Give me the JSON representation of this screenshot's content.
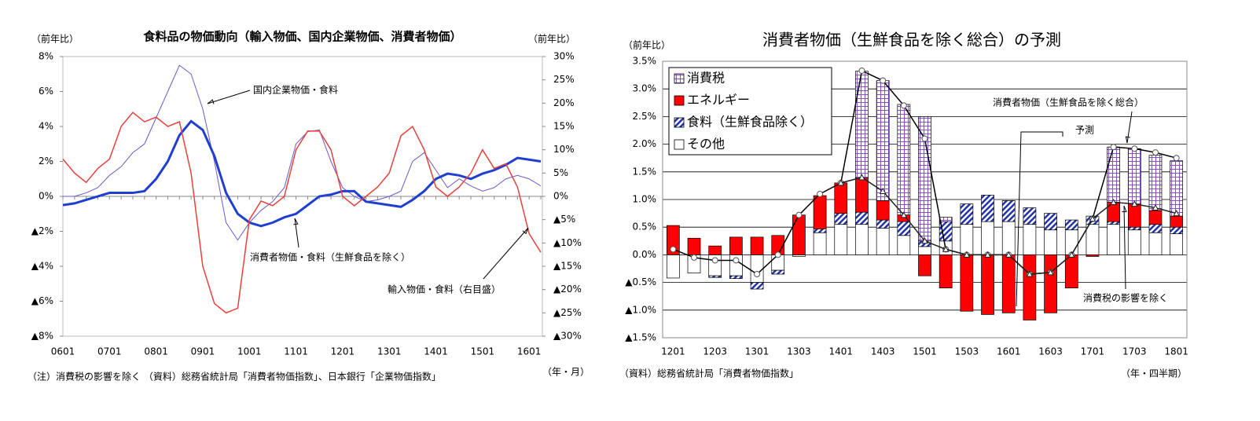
{
  "chart_data": [
    {
      "type": "line",
      "title": "食料品の物価動向（輸入物価、国内企業物価、消費者物価）",
      "y_label": "（前年比）",
      "y2_label": "（前年比）",
      "x_label": "（年・月）",
      "note": "（注）消費税の影響を除く （資料）総務省統計局「消費者物価指数」、日本銀行「企業物価指数」",
      "categories": [
        "0601",
        null,
        null,
        null,
        "0701",
        null,
        null,
        null,
        "0801",
        null,
        null,
        null,
        "0901",
        null,
        null,
        null,
        "1001",
        null,
        null,
        null,
        "1101",
        null,
        null,
        null,
        "1201",
        null,
        null,
        null,
        "1301",
        null,
        null,
        null,
        "1401",
        null,
        null,
        null,
        "1501",
        null,
        null,
        null,
        "1601",
        null
      ],
      "ylim": [
        -8,
        8
      ],
      "yticks": [
        {
          "value": 8,
          "label": "8%"
        },
        {
          "value": 6,
          "label": "6%"
        },
        {
          "value": 4,
          "label": "4%"
        },
        {
          "value": 2,
          "label": "2%"
        },
        {
          "value": 0,
          "label": "0%"
        },
        {
          "value": -2,
          "label": "▲2%"
        },
        {
          "value": -4,
          "label": "▲4%"
        },
        {
          "value": -6,
          "label": "▲6%"
        },
        {
          "value": -8,
          "label": "▲8%"
        }
      ],
      "y2lim": [
        -30,
        30
      ],
      "y2ticks": [
        {
          "value": 30,
          "label": "30%"
        },
        {
          "value": 25,
          "label": "25%"
        },
        {
          "value": 20,
          "label": "20%"
        },
        {
          "value": 15,
          "label": "15%"
        },
        {
          "value": 10,
          "label": "10%"
        },
        {
          "value": 5,
          "label": "5%"
        },
        {
          "value": 0,
          "label": "0%"
        },
        {
          "value": -5,
          "label": "▲5%"
        },
        {
          "value": -10,
          "label": "▲10%"
        },
        {
          "value": -15,
          "label": "▲15%"
        },
        {
          "value": -20,
          "label": "▲20%"
        },
        {
          "value": -25,
          "label": "▲25%"
        },
        {
          "value": -30,
          "label": "▲30%"
        }
      ],
      "grid": false,
      "series": [
        {
          "name": "国内企業物価・食料",
          "color": "#6a5acd",
          "width": 1,
          "values": [
            0,
            0,
            0.2,
            0.5,
            1.2,
            1.7,
            2.5,
            3.0,
            4.5,
            6.0,
            7.5,
            7.0,
            5.0,
            2.0,
            -1.5,
            -2.5,
            -1.5,
            -0.8,
            -0.3,
            0.5,
            3.0,
            3.7,
            3.8,
            2.0,
            0.5,
            0,
            -0.3,
            -0.2,
            0,
            0.3,
            2.0,
            2.5,
            1.5,
            0.5,
            1.0,
            0.6,
            0.3,
            0.5,
            1.0,
            1.2,
            1.0,
            0.6
          ]
        },
        {
          "name": "消費者物価・食料（生鮮食品を除く）",
          "color": "#1f3fd0",
          "width": 3,
          "values": [
            -0.5,
            -0.4,
            -0.2,
            0,
            0.2,
            0.2,
            0.2,
            0.3,
            1.0,
            2.0,
            3.5,
            4.3,
            3.8,
            2.3,
            0.2,
            -1.0,
            -1.5,
            -1.7,
            -1.5,
            -1.2,
            -1.0,
            -0.5,
            0,
            0.1,
            0.3,
            0.3,
            -0.3,
            -0.4,
            -0.5,
            -0.6,
            -0.2,
            0.3,
            1.0,
            1.3,
            1.2,
            1.0,
            1.3,
            1.5,
            1.8,
            2.2,
            2.1,
            2.0
          ]
        },
        {
          "name": "輸入物価・食料（右目盛）",
          "color": "#e8413c",
          "width": 1.5,
          "axis": "y2",
          "values": [
            8,
            5,
            3,
            6,
            8,
            15,
            18,
            16,
            17,
            15,
            16,
            5,
            -15,
            -23,
            -25,
            -24,
            -5,
            -1,
            -2,
            0,
            10,
            14,
            14,
            10,
            0,
            -2,
            0,
            2,
            5,
            13,
            15,
            10,
            2,
            0,
            2,
            5,
            10,
            6,
            7,
            2,
            -8,
            -12
          ]
        }
      ]
    },
    {
      "type": "bar",
      "stacked": true,
      "title": "消費者物価（生鮮食品を除く総合）の予測",
      "y_label": "（前年比）",
      "x_label": "（年・四半期）",
      "note": "（資料）総務省統計局「消費者物価指数」",
      "annotations": [
        "予測"
      ],
      "categories": [
        "1201",
        null,
        "1203",
        null,
        "1301",
        null,
        "1303",
        null,
        "1401",
        null,
        "1403",
        null,
        "1501",
        null,
        "1503",
        null,
        "1601",
        null,
        "1603",
        null,
        "1701",
        null,
        "1703",
        null,
        "1801"
      ],
      "ylim": [
        -1.5,
        3.5
      ],
      "yticks": [
        {
          "value": 3.5,
          "label": "3.5%"
        },
        {
          "value": 3.0,
          "label": "3.0%"
        },
        {
          "value": 2.5,
          "label": "2.5%"
        },
        {
          "value": 2.0,
          "label": "2.0%"
        },
        {
          "value": 1.5,
          "label": "1.5%"
        },
        {
          "value": 1.0,
          "label": "1.0%"
        },
        {
          "value": 0.5,
          "label": "0.5%"
        },
        {
          "value": 0,
          "label": "0.0%"
        },
        {
          "value": -0.5,
          "label": "▲0.5%"
        },
        {
          "value": -1.0,
          "label": "▲1.0%"
        },
        {
          "value": -1.5,
          "label": "▲1.5%"
        }
      ],
      "grid": true,
      "legend": "upper left",
      "series": [
        {
          "name": "消費税",
          "kind": "bar",
          "color": "#8a4fc8",
          "pattern": "grid",
          "values": [
            null,
            null,
            null,
            null,
            null,
            null,
            null,
            null,
            null,
            1.93,
            2.17,
            2.0,
            2.25,
            0.08,
            null,
            null,
            null,
            null,
            null,
            null,
            null,
            1.0,
            1.0,
            1.0,
            1.0
          ]
        },
        {
          "name": "エネルギー",
          "kind": "bar",
          "color": "#ff0000",
          "pattern": "solid",
          "values": [
            0.53,
            0.3,
            0.16,
            0.32,
            0.32,
            0.35,
            0.72,
            0.6,
            0.55,
            0.62,
            0.35,
            0.12,
            -0.38,
            -0.6,
            -1.02,
            -1.08,
            -1.05,
            -1.18,
            -1.05,
            -0.6,
            -0.03,
            0.35,
            0.42,
            0.25,
            0.2
          ]
        },
        {
          "name": "食料（生鮮食品除く）",
          "kind": "bar",
          "color": "#2233aa",
          "pattern": "hatch",
          "values": [
            0,
            0,
            -0.03,
            -0.05,
            -0.12,
            -0.07,
            0,
            0.07,
            0.2,
            0.22,
            0.15,
            0.25,
            0.1,
            0.35,
            0.37,
            0.48,
            0.38,
            0.3,
            0.3,
            0.18,
            0.15,
            0.05,
            0.05,
            0.15,
            0.12
          ]
        },
        {
          "name": "その他",
          "kind": "bar",
          "color": "#ffffff",
          "pattern": "solid",
          "values": [
            -0.42,
            -0.33,
            -0.38,
            -0.38,
            -0.5,
            -0.28,
            -0.03,
            0.4,
            0.55,
            0.55,
            0.48,
            0.35,
            0.15,
            0.25,
            0.55,
            0.6,
            0.6,
            0.55,
            0.45,
            0.45,
            0.55,
            0.55,
            0.45,
            0.4,
            0.38
          ]
        },
        {
          "name": "消費者物価（生鮮食品を除く総合）",
          "kind": "line",
          "color": "#000000",
          "marker": "circle",
          "values": [
            0.1,
            -0.05,
            -0.1,
            -0.1,
            -0.35,
            0,
            0.72,
            1.1,
            1.3,
            3.33,
            3.15,
            2.7,
            2.1,
            0.1,
            0,
            0,
            0,
            -0.35,
            -0.32,
            0,
            0.65,
            1.95,
            1.92,
            1.85,
            1.75
          ]
        },
        {
          "name": "消費税の影響を除く",
          "kind": "line",
          "color": "#222222",
          "marker": "triangle",
          "values": [
            null,
            null,
            null,
            null,
            null,
            null,
            null,
            null,
            1.3,
            1.4,
            1.15,
            0.72,
            0.25,
            0.1,
            0,
            0,
            0,
            -0.35,
            -0.32,
            0,
            0.65,
            0.95,
            0.92,
            0.85,
            0.75
          ]
        }
      ]
    }
  ]
}
